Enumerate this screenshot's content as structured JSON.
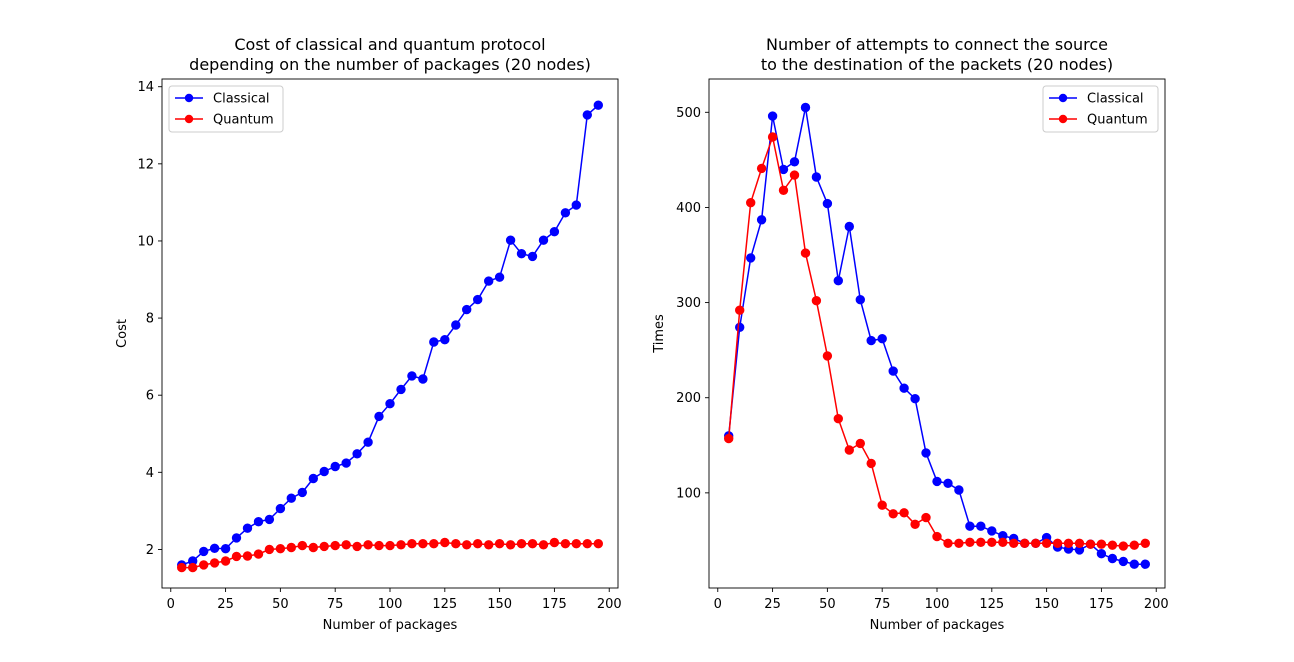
{
  "chart_data": [
    {
      "type": "line",
      "title": "Cost of classical and quantum protocol\ndepending on the number of packages (20 nodes)",
      "xlabel": "Number of packages",
      "ylabel": "Cost",
      "xlim": [
        -4,
        204
      ],
      "ylim": [
        1.0,
        14.2
      ],
      "xticks": [
        0,
        25,
        50,
        75,
        100,
        125,
        150,
        175,
        200
      ],
      "yticks": [
        2,
        4,
        6,
        8,
        10,
        12,
        14
      ],
      "legend_position": "upper-left",
      "x": [
        5,
        10,
        15,
        20,
        25,
        30,
        35,
        40,
        45,
        50,
        55,
        60,
        65,
        70,
        75,
        80,
        85,
        90,
        95,
        100,
        105,
        110,
        115,
        120,
        125,
        130,
        135,
        140,
        145,
        150,
        155,
        160,
        165,
        170,
        175,
        180,
        185,
        190,
        195
      ],
      "series": [
        {
          "name": "Classical",
          "color": "#0000ff",
          "values": [
            1.6,
            1.7,
            1.95,
            2.03,
            2.02,
            2.3,
            2.55,
            2.72,
            2.78,
            3.06,
            3.33,
            3.48,
            3.84,
            4.02,
            4.15,
            4.24,
            4.48,
            4.78,
            5.45,
            5.78,
            6.15,
            6.5,
            6.42,
            7.38,
            7.44,
            7.82,
            8.22,
            8.48,
            8.96,
            9.06,
            10.02,
            9.67,
            9.6,
            10.02,
            10.24,
            10.73,
            10.93,
            13.27,
            13.52
          ]
        },
        {
          "name": "Quantum",
          "color": "#ff0000",
          "values": [
            1.53,
            1.53,
            1.6,
            1.65,
            1.7,
            1.82,
            1.83,
            1.88,
            2.0,
            2.02,
            2.05,
            2.1,
            2.05,
            2.08,
            2.1,
            2.12,
            2.08,
            2.12,
            2.1,
            2.1,
            2.12,
            2.15,
            2.15,
            2.15,
            2.18,
            2.15,
            2.12,
            2.15,
            2.12,
            2.15,
            2.12,
            2.15,
            2.15,
            2.12,
            2.18,
            2.15,
            2.15,
            2.15,
            2.15
          ]
        }
      ]
    },
    {
      "type": "line",
      "title": "Number of attempts to connect the source\nto the destination of the packets (20 nodes)",
      "xlabel": "Number of packages",
      "ylabel": "Times",
      "xlim": [
        -4,
        204
      ],
      "ylim": [
        0,
        535
      ],
      "xticks": [
        0,
        25,
        50,
        75,
        100,
        125,
        150,
        175,
        200
      ],
      "yticks": [
        100,
        200,
        300,
        400,
        500
      ],
      "legend_position": "upper-right",
      "x": [
        5,
        10,
        15,
        20,
        25,
        30,
        35,
        40,
        45,
        50,
        55,
        60,
        65,
        70,
        75,
        80,
        85,
        90,
        95,
        100,
        105,
        110,
        115,
        120,
        125,
        130,
        135,
        140,
        145,
        150,
        155,
        160,
        165,
        170,
        175,
        180,
        185,
        190,
        195
      ],
      "series": [
        {
          "name": "Classical",
          "color": "#0000ff",
          "values": [
            160,
            274,
            347,
            387,
            496,
            440,
            448,
            505,
            432,
            404,
            323,
            380,
            303,
            260,
            262,
            228,
            210,
            199,
            142,
            112,
            110,
            103,
            65,
            65,
            60,
            55,
            52,
            47,
            47,
            53,
            43,
            41,
            40,
            46,
            36,
            31,
            28,
            25,
            25
          ]
        },
        {
          "name": "Quantum",
          "color": "#ff0000",
          "values": [
            157,
            292,
            405,
            441,
            474,
            418,
            434,
            352,
            302,
            244,
            178,
            145,
            152,
            131,
            87,
            78,
            79,
            67,
            74,
            54,
            47,
            47,
            48,
            48,
            48,
            48,
            47,
            47,
            47,
            47,
            47,
            47,
            47,
            46,
            46,
            45,
            44,
            45,
            47
          ]
        }
      ]
    }
  ]
}
